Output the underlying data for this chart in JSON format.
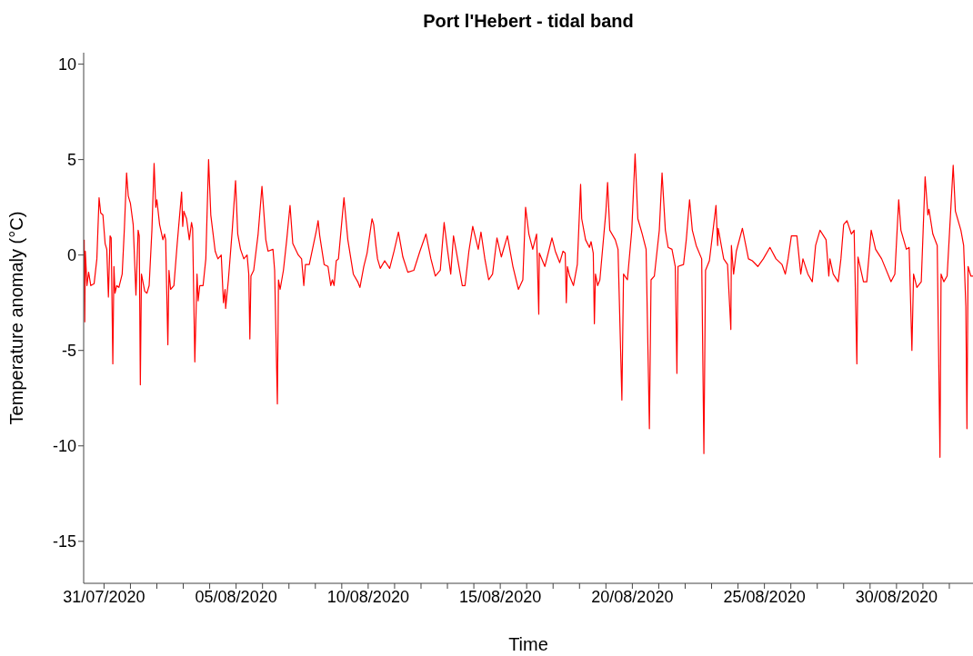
{
  "chart_data": {
    "type": "line",
    "title": "Port l'Hebert - tidal band",
    "xlabel": "Time",
    "ylabel": "Temperature anomaly (°C)",
    "xlim": [
      "2020-07-30T05:30",
      "2020-09-01T21:30"
    ],
    "ylim": [
      -17.2,
      10.6
    ],
    "yticks": [
      -15,
      -10,
      -5,
      0,
      5,
      10
    ],
    "xticks": [
      {
        "value": "2020-07-31",
        "label": "31/07/2020"
      },
      {
        "value": "2020-08-01",
        "label": null
      },
      {
        "value": "2020-08-02",
        "label": null
      },
      {
        "value": "2020-08-03",
        "label": null
      },
      {
        "value": "2020-08-04",
        "label": null
      },
      {
        "value": "2020-08-05",
        "label": "05/08/2020"
      },
      {
        "value": "2020-08-06",
        "label": null
      },
      {
        "value": "2020-08-07",
        "label": null
      },
      {
        "value": "2020-08-08",
        "label": null
      },
      {
        "value": "2020-08-09",
        "label": null
      },
      {
        "value": "2020-08-10",
        "label": "10/08/2020"
      },
      {
        "value": "2020-08-11",
        "label": null
      },
      {
        "value": "2020-08-12",
        "label": null
      },
      {
        "value": "2020-08-13",
        "label": null
      },
      {
        "value": "2020-08-14",
        "label": null
      },
      {
        "value": "2020-08-15",
        "label": "15/08/2020"
      },
      {
        "value": "2020-08-16",
        "label": null
      },
      {
        "value": "2020-08-17",
        "label": null
      },
      {
        "value": "2020-08-18",
        "label": null
      },
      {
        "value": "2020-08-19",
        "label": null
      },
      {
        "value": "2020-08-20",
        "label": "20/08/2020"
      },
      {
        "value": "2020-08-21",
        "label": null
      },
      {
        "value": "2020-08-22",
        "label": null
      },
      {
        "value": "2020-08-23",
        "label": null
      },
      {
        "value": "2020-08-24",
        "label": null
      },
      {
        "value": "2020-08-25",
        "label": "25/08/2020"
      },
      {
        "value": "2020-08-26",
        "label": null
      },
      {
        "value": "2020-08-27",
        "label": null
      },
      {
        "value": "2020-08-28",
        "label": null
      },
      {
        "value": "2020-08-29",
        "label": null
      },
      {
        "value": "2020-08-30",
        "label": "30/08/2020"
      },
      {
        "value": "2020-08-31",
        "label": null
      },
      {
        "value": "2020-09-01",
        "label": null
      }
    ],
    "x": [
      "2020-07-30T06:00",
      "2020-07-30T06:30",
      "2020-07-30T07:00",
      "2020-07-30T08:30",
      "2020-07-30T10:00",
      "2020-07-30T12:00",
      "2020-07-30T15:00",
      "2020-07-30T17:30",
      "2020-07-30T19:30",
      "2020-07-30T21:00",
      "2020-07-30T23:00",
      "2020-07-31T01:00",
      "2020-07-31T02:30",
      "2020-07-31T04:00",
      "2020-07-31T05:30",
      "2020-07-31T06:30",
      "2020-07-31T08:00",
      "2020-07-31T09:00",
      "2020-07-31T10:00",
      "2020-07-31T11:30",
      "2020-07-31T13:30",
      "2020-07-31T16:30",
      "2020-07-31T18:30",
      "2020-07-31T20:30",
      "2020-07-31T22:00",
      "2020-08-01T00:00",
      "2020-08-01T02:30",
      "2020-08-01T05:00",
      "2020-08-01T07:00",
      "2020-08-01T08:00",
      "2020-08-01T09:00",
      "2020-08-01T10:00",
      "2020-08-01T13:00",
      "2020-08-01T15:00",
      "2020-08-01T17:00",
      "2020-08-01T19:30",
      "2020-08-01T21:30",
      "2020-08-01T23:00",
      "2020-08-02T00:00",
      "2020-08-02T02:30",
      "2020-08-02T05:30",
      "2020-08-02T07:00",
      "2020-08-02T08:00",
      "2020-08-02T10:00",
      "2020-08-02T11:00",
      "2020-08-02T12:30",
      "2020-08-02T15:30",
      "2020-08-02T18:30",
      "2020-08-02T22:30",
      "2020-08-02T23:30",
      "2020-08-03T00:30",
      "2020-08-03T03:00",
      "2020-08-03T05:30",
      "2020-08-03T07:30",
      "2020-08-03T08:30",
      "2020-08-03T09:30",
      "2020-08-03T10:30",
      "2020-08-03T12:30",
      "2020-08-03T13:30",
      "2020-08-03T15:00",
      "2020-08-03T18:00",
      "2020-08-03T20:30",
      "2020-08-03T23:00",
      "2020-08-04T01:00",
      "2020-08-04T05:00",
      "2020-08-04T07:30",
      "2020-08-04T10:30",
      "2020-08-04T12:30",
      "2020-08-04T14:00",
      "2020-08-04T14:30",
      "2020-08-04T17:00",
      "2020-08-04T20:30",
      "2020-08-04T23:30",
      "2020-08-05T01:30",
      "2020-08-05T04:00",
      "2020-08-05T07:00",
      "2020-08-05T10:00",
      "2020-08-05T11:30",
      "2020-08-05T12:30",
      "2020-08-05T13:30",
      "2020-08-05T16:00",
      "2020-08-05T20:00",
      "2020-08-05T23:30",
      "2020-08-06T03:00",
      "2020-08-06T05:00",
      "2020-08-06T09:30",
      "2020-08-06T11:00",
      "2020-08-06T13:30",
      "2020-08-06T14:30",
      "2020-08-06T16:00",
      "2020-08-06T19:00",
      "2020-08-06T22:00",
      "2020-08-07T01:00",
      "2020-08-07T03:30",
      "2020-08-07T08:30",
      "2020-08-07T11:30",
      "2020-08-07T13:30",
      "2020-08-07T15:00",
      "2020-08-07T18:30",
      "2020-08-08T01:00",
      "2020-08-08T02:30",
      "2020-08-08T04:00",
      "2020-08-08T08:00",
      "2020-08-08T11:30",
      "2020-08-08T14:00",
      "2020-08-08T15:30",
      "2020-08-08T17:00",
      "2020-08-08T19:00",
      "2020-08-08T21:00",
      "2020-08-09T02:00",
      "2020-08-09T05:30",
      "2020-08-09T10:30",
      "2020-08-09T14:30",
      "2020-08-09T16:30",
      "2020-08-09T20:00",
      "2020-08-09T23:00",
      "2020-08-10T03:30",
      "2020-08-10T05:00",
      "2020-08-10T07:00",
      "2020-08-10T08:30",
      "2020-08-10T11:00",
      "2020-08-10T15:00",
      "2020-08-10T19:30",
      "2020-08-10T23:30",
      "2020-08-11T03:30",
      "2020-08-11T07:30",
      "2020-08-11T12:00",
      "2020-08-11T17:30",
      "2020-08-11T23:00",
      "2020-08-12T04:30",
      "2020-08-12T09:00",
      "2020-08-12T13:00",
      "2020-08-12T17:30",
      "2020-08-12T21:00",
      "2020-08-13T00:00",
      "2020-08-13T03:00",
      "2020-08-13T05:30",
      "2020-08-13T08:00",
      "2020-08-13T13:30",
      "2020-08-13T16:00",
      "2020-08-13T19:30",
      "2020-08-13T23:00",
      "2020-08-14T04:00",
      "2020-08-14T06:30",
      "2020-08-14T10:00",
      "2020-08-14T13:30",
      "2020-08-14T17:00",
      "2020-08-14T21:00",
      "2020-08-15T01:00",
      "2020-08-15T06:30",
      "2020-08-15T11:30",
      "2020-08-15T16:30",
      "2020-08-15T20:30",
      "2020-08-15T23:00",
      "2020-08-16T02:00",
      "2020-08-16T05:30",
      "2020-08-16T09:00",
      "2020-08-16T11:00",
      "2020-08-16T11:30",
      "2020-08-16T16:30",
      "2020-08-16T23:00",
      "2020-08-17T02:00",
      "2020-08-17T06:00",
      "2020-08-17T09:00",
      "2020-08-17T11:00",
      "2020-08-17T12:00",
      "2020-08-17T13:00",
      "2020-08-17T15:00",
      "2020-08-17T18:30",
      "2020-08-17T22:00",
      "2020-08-18T01:00",
      "2020-08-18T02:00",
      "2020-08-18T05:30",
      "2020-08-18T09:00",
      "2020-08-18T10:30",
      "2020-08-18T12:30",
      "2020-08-18T13:30",
      "2020-08-18T14:30",
      "2020-08-18T16:30",
      "2020-08-18T18:30",
      "2020-08-19T00:00",
      "2020-08-19T01:30",
      "2020-08-19T03:30",
      "2020-08-19T08:30",
      "2020-08-19T11:00",
      "2020-08-19T14:30",
      "2020-08-19T16:00",
      "2020-08-19T19:30",
      "2020-08-19T23:30",
      "2020-08-20T02:30",
      "2020-08-20T05:00",
      "2020-08-20T09:00",
      "2020-08-20T12:30",
      "2020-08-20T15:30",
      "2020-08-20T17:00",
      "2020-08-20T20:00",
      "2020-08-21T00:30",
      "2020-08-21T03:00",
      "2020-08-21T06:00",
      "2020-08-21T08:30",
      "2020-08-21T12:00",
      "2020-08-21T15:00",
      "2020-08-21T16:30",
      "2020-08-21T17:30",
      "2020-08-21T22:30",
      "2020-08-22T01:00",
      "2020-08-22T04:00",
      "2020-08-22T06:30",
      "2020-08-22T10:00",
      "2020-08-22T15:00",
      "2020-08-22T17:00",
      "2020-08-22T18:30",
      "2020-08-22T22:00",
      "2020-08-23T04:00",
      "2020-08-23T05:30",
      "2020-08-23T06:00",
      "2020-08-23T11:00",
      "2020-08-23T14:30",
      "2020-08-23T17:30",
      "2020-08-23T18:00",
      "2020-08-23T20:00",
      "2020-08-23T22:30",
      "2020-08-24T04:00",
      "2020-08-24T09:30",
      "2020-08-24T13:00",
      "2020-08-24T18:00",
      "2020-08-24T23:00",
      "2020-08-25T05:00",
      "2020-08-25T10:30",
      "2020-08-25T16:00",
      "2020-08-25T19:00",
      "2020-08-25T21:30",
      "2020-08-26T00:30",
      "2020-08-26T05:30",
      "2020-08-26T09:00",
      "2020-08-26T11:00",
      "2020-08-26T15:30",
      "2020-08-26T19:30",
      "2020-08-26T22:30",
      "2020-08-27T02:30",
      "2020-08-27T08:00",
      "2020-08-27T10:30",
      "2020-08-27T11:30",
      "2020-08-27T14:30",
      "2020-08-27T19:00",
      "2020-08-27T21:30",
      "2020-08-28T00:00",
      "2020-08-28T03:00",
      "2020-08-28T07:00",
      "2020-08-28T09:30",
      "2020-08-28T12:00",
      "2020-08-28T13:00",
      "2020-08-28T18:00",
      "2020-08-28T21:00",
      "2020-08-29T01:00",
      "2020-08-29T05:00",
      "2020-08-29T10:30",
      "2020-08-29T19:00",
      "2020-08-29T22:30",
      "2020-08-30T02:00",
      "2020-08-30T04:00",
      "2020-08-30T09:00",
      "2020-08-30T11:30",
      "2020-08-30T14:00",
      "2020-08-30T15:30",
      "2020-08-30T18:30",
      "2020-08-30T22:30",
      "2020-08-31T02:00",
      "2020-08-31T04:30",
      "2020-08-31T05:30",
      "2020-08-31T09:00",
      "2020-08-31T13:00",
      "2020-08-31T15:30",
      "2020-08-31T16:30",
      "2020-08-31T19:00",
      "2020-08-31T22:00",
      "2020-09-01T03:30",
      "2020-09-01T05:30",
      "2020-09-01T10:30",
      "2020-09-01T13:00",
      "2020-09-01T15:00",
      "2020-09-01T16:00",
      "2020-09-01T17:00",
      "2020-09-01T19:30",
      "2020-09-01T21:30"
    ],
    "series": [
      {
        "color": "#ff0000",
        "values": [
          0.8,
          -3.5,
          0.2,
          -1.6,
          -0.9,
          -1.6,
          -1.5,
          -0.2,
          3.0,
          2.2,
          2.1,
          0.6,
          0.3,
          -2.2,
          1.0,
          0.9,
          -5.7,
          -0.6,
          -2.0,
          -1.6,
          -1.7,
          -1.0,
          1.4,
          4.3,
          3.1,
          2.7,
          1.6,
          -2.1,
          1.3,
          1.0,
          -6.8,
          -1.0,
          -1.9,
          -2.0,
          -1.6,
          1.3,
          4.8,
          2.5,
          2.9,
          1.6,
          0.8,
          1.1,
          0.8,
          -4.7,
          -0.8,
          -1.8,
          -1.6,
          0.6,
          3.3,
          1.5,
          2.3,
          1.9,
          0.8,
          1.7,
          1.4,
          -2.1,
          -5.6,
          -1.0,
          -2.4,
          -1.6,
          -1.6,
          -0.2,
          5.0,
          2.1,
          0.2,
          -0.2,
          0.0,
          -2.5,
          -1.8,
          -2.8,
          -1.3,
          1.3,
          3.9,
          1.1,
          0.3,
          -0.2,
          0.0,
          -1.0,
          -4.4,
          -1.1,
          -0.8,
          1.1,
          3.6,
          0.8,
          0.2,
          0.3,
          -0.8,
          -7.8,
          -1.3,
          -1.8,
          -0.8,
          0.8,
          2.6,
          0.6,
          0.0,
          -0.2,
          -1.6,
          -0.5,
          -0.5,
          1.3,
          1.8,
          1.0,
          -0.5,
          -0.6,
          -1.6,
          -1.3,
          -1.6,
          -0.3,
          -0.2,
          3.0,
          0.8,
          -1.0,
          -1.4,
          -1.7,
          -0.6,
          0.1,
          1.9,
          1.6,
          0.5,
          -0.2,
          -0.7,
          -0.3,
          -0.7,
          0.2,
          1.2,
          -0.1,
          -0.9,
          -0.8,
          0.2,
          1.1,
          -0.2,
          -1.1,
          -0.8,
          1.7,
          0.3,
          -1.0,
          1.0,
          0.2,
          -1.6,
          -1.6,
          0.2,
          1.5,
          0.3,
          1.2,
          -0.2,
          -1.3,
          -1.0,
          0.9,
          -0.1,
          1.0,
          -0.6,
          -1.8,
          -1.3,
          2.5,
          1.1,
          0.3,
          1.1,
          -3.1,
          0.1,
          -0.6,
          0.9,
          0.2,
          -0.4,
          0.2,
          0.1,
          -2.5,
          -0.6,
          -1.1,
          -1.6,
          -0.5,
          3.7,
          1.9,
          0.8,
          0.4,
          0.7,
          0.1,
          -3.6,
          -1.0,
          -1.6,
          -1.3,
          2.3,
          3.8,
          1.3,
          0.8,
          0.3,
          -7.6,
          -1.0,
          -1.3,
          1.3,
          5.3,
          1.9,
          1.1,
          0.3,
          -9.1,
          -1.3,
          -1.1,
          1.3,
          4.3,
          1.3,
          0.4,
          0.3,
          -0.6,
          -6.2,
          -0.6,
          -0.5,
          0.8,
          2.9,
          1.3,
          0.5,
          -0.2,
          -10.4,
          -0.8,
          -0.3,
          2.6,
          0.5,
          1.4,
          -0.2,
          -0.5,
          -3.9,
          0.5,
          -1.0,
          0.2,
          1.4,
          -0.2,
          -0.3,
          -0.6,
          -0.2,
          0.4,
          -0.2,
          -0.5,
          -1.0,
          -0.2,
          1.0,
          1.0,
          -1.0,
          -0.2,
          -1.0,
          -1.4,
          0.5,
          1.3,
          0.8,
          -1.1,
          -0.2,
          -1.0,
          -1.4,
          -0.2,
          1.6,
          1.8,
          1.1,
          1.3,
          -5.7,
          -0.1,
          -1.4,
          -1.4,
          1.3,
          0.3,
          -0.2,
          -1.4,
          -1.0,
          2.9,
          1.3,
          0.3,
          0.4,
          -5.0,
          -1.0,
          -1.7,
          -1.4,
          4.1,
          2.1,
          2.4,
          1.1,
          0.5,
          -10.6,
          -1.0,
          -1.4,
          -1.1,
          4.7,
          2.3,
          1.3,
          0.5,
          -2.7,
          -9.1,
          -0.6,
          -1.1,
          -1.1
        ]
      }
    ]
  }
}
